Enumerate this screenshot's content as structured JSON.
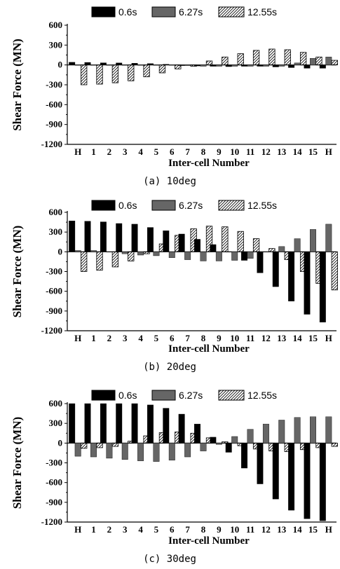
{
  "chart_data": [
    {
      "type": "bar",
      "caption": "(a) 10deg",
      "xlabel": "Inter-cell Number",
      "ylabel": "Shear Force (MN)",
      "ylim": [
        -1200,
        600
      ],
      "yticks": [
        "600",
        "300",
        "0",
        "-300",
        "-600",
        "-900",
        "-1200"
      ],
      "categories": [
        "H",
        "1",
        "2",
        "3",
        "4",
        "5",
        "6",
        "7",
        "8",
        "9",
        "10",
        "11",
        "12",
        "13",
        "14",
        "15",
        "H"
      ],
      "legend_position": "top",
      "series": [
        {
          "name": "0.6s",
          "values": [
            40,
            38,
            32,
            30,
            25,
            20,
            10,
            -10,
            -15,
            -20,
            -25,
            -20,
            -20,
            -30,
            -40,
            -50,
            -50
          ]
        },
        {
          "name": "6.27s",
          "values": [
            0,
            0,
            0,
            0,
            0,
            0,
            0,
            -10,
            -20,
            -20,
            -20,
            -20,
            -20,
            -20,
            30,
            100,
            120
          ]
        },
        {
          "name": "12.55s",
          "values": [
            -300,
            -290,
            -270,
            -240,
            -180,
            -120,
            -60,
            -20,
            60,
            120,
            170,
            220,
            240,
            230,
            190,
            120,
            70
          ]
        }
      ]
    },
    {
      "type": "bar",
      "caption": "(b) 20deg",
      "xlabel": "Inter-cell Number",
      "ylabel": "Shear Force (MN)",
      "ylim": [
        -1200,
        600
      ],
      "yticks": [
        "600",
        "300",
        "0",
        "-300",
        "-600",
        "-900",
        "-1200"
      ],
      "categories": [
        "H",
        "1",
        "2",
        "3",
        "4",
        "5",
        "6",
        "7",
        "8",
        "9",
        "10",
        "11",
        "12",
        "13",
        "14",
        "15",
        "H"
      ],
      "legend_position": "top",
      "series": [
        {
          "name": "0.6s",
          "values": [
            470,
            465,
            455,
            430,
            420,
            370,
            320,
            270,
            190,
            110,
            0,
            -130,
            -320,
            -530,
            -750,
            -950,
            -1070
          ]
        },
        {
          "name": "6.27s",
          "values": [
            20,
            20,
            0,
            -30,
            -50,
            -60,
            -90,
            -120,
            -140,
            -140,
            -130,
            -100,
            0,
            80,
            200,
            340,
            420
          ]
        },
        {
          "name": "12.55s",
          "values": [
            -300,
            -280,
            -230,
            -140,
            -30,
            120,
            250,
            350,
            390,
            380,
            310,
            200,
            50,
            -120,
            -300,
            -480,
            -580
          ]
        }
      ]
    },
    {
      "type": "bar",
      "caption": "(c) 30deg",
      "xlabel": "Inter-cell Number",
      "ylabel": "Shear Force (MN)",
      "ylim": [
        -1200,
        600
      ],
      "yticks": [
        "600",
        "300",
        "0",
        "-300",
        "-600",
        "-900",
        "-1200"
      ],
      "categories": [
        "H",
        "1",
        "2",
        "3",
        "4",
        "5",
        "6",
        "7",
        "8",
        "9",
        "10",
        "11",
        "12",
        "13",
        "14",
        "15",
        "H"
      ],
      "legend_position": "top",
      "series": [
        {
          "name": "0.6s",
          "values": [
            600,
            600,
            600,
            600,
            600,
            580,
            530,
            440,
            290,
            90,
            -140,
            -380,
            -620,
            -850,
            -1020,
            -1150,
            -1180
          ]
        },
        {
          "name": "6.27s",
          "values": [
            -200,
            -210,
            -230,
            -250,
            -270,
            -280,
            -260,
            -210,
            -120,
            -20,
            100,
            210,
            290,
            350,
            390,
            400,
            400
          ]
        },
        {
          "name": "12.55s",
          "values": [
            -80,
            -70,
            -50,
            30,
            110,
            160,
            170,
            150,
            80,
            20,
            -40,
            -90,
            -120,
            -130,
            -100,
            -70,
            -50
          ]
        }
      ]
    }
  ],
  "colors": {
    "s1": "#000000",
    "s2": "#666666",
    "s3": "#ffffff"
  }
}
